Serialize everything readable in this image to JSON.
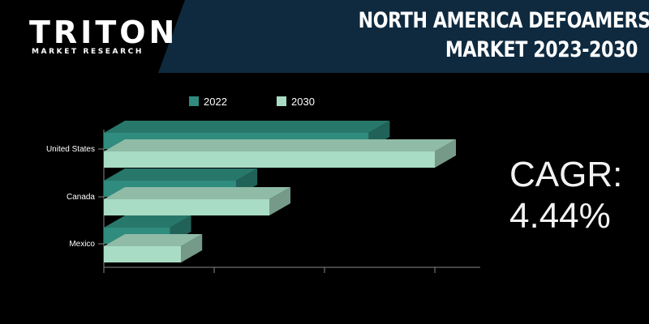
{
  "brand": {
    "name": "TRITON",
    "tagline": "MARKET RESEARCH"
  },
  "title": {
    "line1": "NORTH AMERICA DEFOAMERS",
    "line2": "MARKET 2023-2030"
  },
  "cagr": {
    "label": "CAGR:",
    "value": "4.44%"
  },
  "colors": {
    "header": "#0f2a3f",
    "series_2022": "#2f8c7e",
    "series_2030": "#a8dcc4",
    "axis": "#888888",
    "text": "#ffffff"
  },
  "chart_data": {
    "type": "bar",
    "orientation": "horizontal",
    "style": "3d",
    "categories": [
      "United States",
      "Canada",
      "Mexico"
    ],
    "series": [
      {
        "name": "2022",
        "values": [
          24,
          12,
          6
        ]
      },
      {
        "name": "2030",
        "values": [
          30,
          15,
          7
        ]
      }
    ],
    "xlim": [
      0,
      34
    ],
    "legend": "top",
    "grid": false,
    "title": "",
    "xlabel": "",
    "ylabel": ""
  }
}
